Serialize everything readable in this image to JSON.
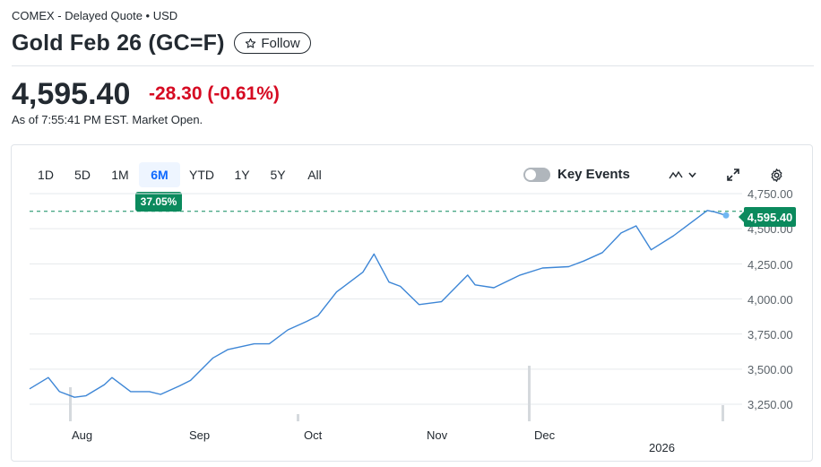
{
  "header": {
    "exchange": "COMEX - Delayed Quote • USD",
    "title": "Gold Feb 26 (GC=F)",
    "follow_label": "Follow"
  },
  "quote": {
    "price": "4,595.40",
    "change": "-28.30",
    "change_pct": "(-0.61%)",
    "as_of": "As of 7:55:41 PM EST. Market Open.",
    "change_color": "#d60a22"
  },
  "chart_controls": {
    "ranges": [
      "1D",
      "5D",
      "1M",
      "6M",
      "YTD",
      "1Y",
      "5Y",
      "All"
    ],
    "active_range": "6M",
    "period_change": "37.05%",
    "key_events_label": "Key Events",
    "key_events_enabled": false,
    "icons": [
      "chart-type-icon",
      "chevron-down-icon",
      "expand-icon",
      "settings-icon"
    ]
  },
  "chart_data": {
    "type": "line",
    "series": [
      {
        "color": "#3d86d6",
        "x": [
          "2025-07-17",
          "2025-07-22",
          "2025-07-25",
          "2025-07-29",
          "2025-08-01",
          "2025-08-06",
          "2025-08-08",
          "2025-08-13",
          "2025-08-18",
          "2025-08-21",
          "2025-08-26",
          "2025-08-29",
          "2025-09-04",
          "2025-09-08",
          "2025-09-15",
          "2025-09-19",
          "2025-09-24",
          "2025-09-29",
          "2025-10-02",
          "2025-10-07",
          "2025-10-14",
          "2025-10-17",
          "2025-10-21",
          "2025-10-24",
          "2025-10-29",
          "2025-11-04",
          "2025-11-11",
          "2025-11-13",
          "2025-11-18",
          "2025-11-25",
          "2025-12-01",
          "2025-12-08",
          "2025-12-12",
          "2025-12-17",
          "2025-12-22",
          "2025-12-26",
          "2025-12-30",
          "2026-01-05",
          "2026-01-12",
          "2026-01-14",
          "2026-01-16",
          "2026-01-19"
        ],
        "y": [
          3360,
          3440,
          3340,
          3300,
          3310,
          3390,
          3440,
          3340,
          3340,
          3320,
          3380,
          3420,
          3580,
          3640,
          3680,
          3680,
          3780,
          3840,
          3880,
          4050,
          4190,
          4320,
          4120,
          4090,
          3960,
          3980,
          4170,
          4100,
          4080,
          4170,
          4220,
          4230,
          4270,
          4330,
          4470,
          4520,
          4350,
          4450,
          4590,
          4630,
          4620,
          4595
        ]
      }
    ],
    "current_price": 4595.4,
    "reference_line": "previous close",
    "xlabel": "",
    "ylabel": "",
    "y_ticks": [
      "4,750.00",
      "4,500.00",
      "4,250.00",
      "4,000.00",
      "3,750.00",
      "3,500.00",
      "3,250.00"
    ],
    "ylim": [
      3250,
      4750
    ],
    "x_tick_labels": [
      "Aug",
      "Sep",
      "Oct",
      "Nov",
      "Dec",
      "2026"
    ],
    "volume_present": true,
    "grid": true
  },
  "colors": {
    "accent": "#0f69ff",
    "up_badge": "#0b8a5d",
    "line": "#3d86d6",
    "negative": "#d60a22"
  }
}
